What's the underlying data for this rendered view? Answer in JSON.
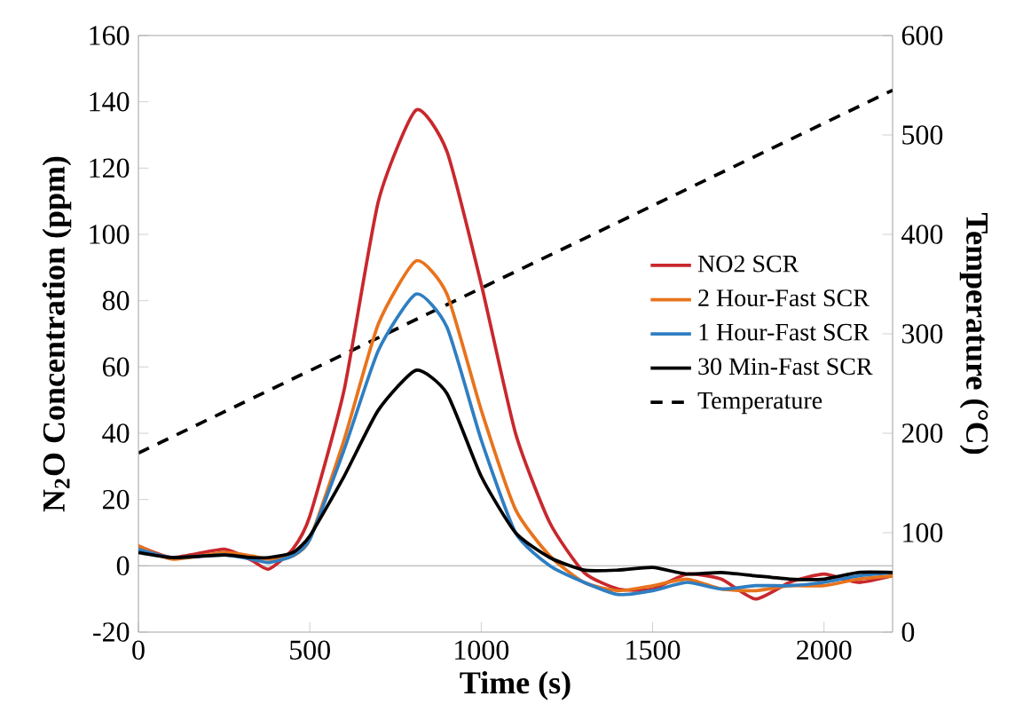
{
  "chart_data": {
    "type": "line",
    "xlabel": "Time (s)",
    "ylabel": "N$_{2}$O Concentration (ppm)",
    "y2label": "Temperature (°C)",
    "x": [
      0,
      100,
      250,
      330,
      380,
      450,
      500,
      600,
      700,
      810,
      900,
      1000,
      1100,
      1200,
      1300,
      1400,
      1500,
      1600,
      1700,
      1800,
      1900,
      2000,
      2100,
      2200
    ],
    "series": [
      {
        "name": "NO2 SCR",
        "color": "#c8282d",
        "values": [
          6,
          2.5,
          5,
          1.7,
          -1,
          5,
          15,
          53,
          110,
          137.5,
          125,
          85,
          40,
          13,
          -2,
          -7,
          -7,
          -2.5,
          -4,
          -10,
          -5,
          -2.5,
          -5,
          -3
        ]
      },
      {
        "name": "2 Hour-Fast SCR",
        "color": "#e8731c",
        "values": [
          6,
          2,
          4,
          3,
          2,
          3,
          8,
          38,
          73,
          92,
          82,
          47,
          17,
          3,
          -5,
          -7.5,
          -6,
          -4,
          -7,
          -7.5,
          -6,
          -6,
          -4,
          -3
        ]
      },
      {
        "name": "1 Hour-Fast SCR",
        "color": "#2f7ec1",
        "values": [
          5,
          2.5,
          3.3,
          2,
          1,
          3,
          8,
          35,
          65,
          82,
          72,
          38,
          10,
          0,
          -5,
          -8.7,
          -7.5,
          -5,
          -7,
          -6,
          -6,
          -5,
          -3,
          -2
        ]
      },
      {
        "name": "30 Min-Fast SCR",
        "color": "#000000",
        "values": [
          4,
          2.5,
          3.3,
          2.5,
          2.5,
          4,
          9,
          27,
          47,
          59,
          52,
          27,
          10,
          2.5,
          -1.3,
          -1.3,
          -0.5,
          -2.5,
          -2,
          -3,
          -4,
          -4,
          -2,
          -2
        ]
      },
      {
        "name": "Temperature",
        "color": "#000000",
        "type": "line",
        "axis": "y2",
        "line_style": "dashed",
        "x": [
          0,
          2200
        ],
        "values": [
          180,
          545
        ]
      }
    ],
    "xlim": [
      0,
      2200
    ],
    "xticks": [
      0,
      500,
      1000,
      1500,
      2000
    ],
    "ylim": [
      -20,
      160
    ],
    "yticks": [
      -20,
      0,
      20,
      40,
      60,
      80,
      100,
      120,
      140,
      160
    ],
    "y2lim": [
      0,
      600
    ],
    "y2ticks": [
      0,
      100,
      200,
      300,
      400,
      500,
      600
    ],
    "legend": "right"
  }
}
